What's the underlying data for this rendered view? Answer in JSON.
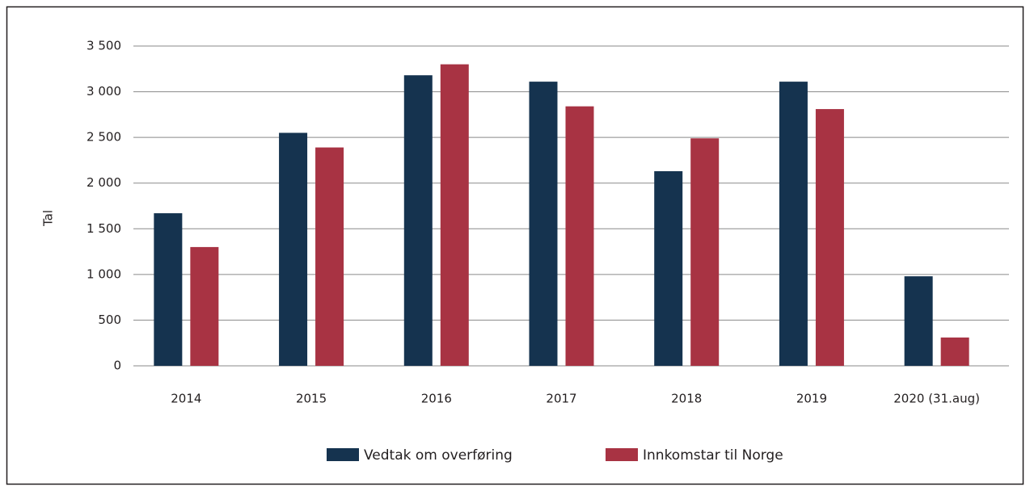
{
  "chart_data": {
    "type": "bar",
    "y_label": "Tal",
    "categories": [
      "2014",
      "2015",
      "2016",
      "2017",
      "2018",
      "2019",
      "2020 (31.aug)"
    ],
    "series": [
      {
        "name": "Vedtak om overføring",
        "color": "#15334f",
        "values": [
          1670,
          2550,
          3180,
          3110,
          2130,
          3110,
          980
        ]
      },
      {
        "name": "Innkomstar til Norge",
        "color": "#a83343",
        "values": [
          1300,
          2390,
          3300,
          2840,
          2490,
          2810,
          310
        ]
      }
    ],
    "ylim": [
      0,
      3500
    ],
    "yticks": [
      0,
      500,
      {
        "value": 1000,
        "label": "1 000"
      },
      {
        "value": 1500,
        "label": "1 500"
      },
      {
        "value": 2000,
        "label": "2 000"
      },
      {
        "value": 2500,
        "label": "2 500"
      },
      {
        "value": 3000,
        "label": "3 000"
      },
      {
        "value": 3500,
        "label": "3 500"
      }
    ],
    "grid": true,
    "legend": "bottom"
  }
}
